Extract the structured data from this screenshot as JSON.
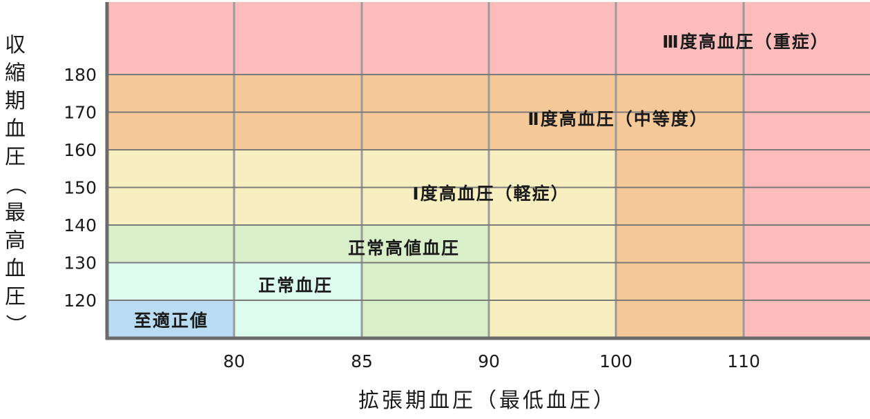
{
  "chart_data": {
    "type": "heatmap",
    "xlabel": "拡張期血圧（最低血圧）",
    "ylabel": "収縮期血圧（最高血圧）",
    "x_ticks": [
      80,
      85,
      90,
      100,
      110
    ],
    "y_ticks": [
      120,
      130,
      140,
      150,
      160,
      170,
      180
    ],
    "categories": [
      {
        "name": "至適正値",
        "max_systolic": 120,
        "max_diastolic": 80,
        "color": "#b9dcf2"
      },
      {
        "name": "正常血圧",
        "max_systolic": 130,
        "max_diastolic": 85,
        "color": "#dcfaee"
      },
      {
        "name": "正常高値血圧",
        "max_systolic": 140,
        "max_diastolic": 90,
        "color": "#d8efc9"
      },
      {
        "name": "Ⅰ度高血圧（軽症）",
        "max_systolic": 160,
        "max_diastolic": 100,
        "color": "#f7efc0"
      },
      {
        "name": "Ⅱ度高血圧（中等度）",
        "max_systolic": 180,
        "max_diastolic": 110,
        "color": "#f5c898"
      },
      {
        "name": "Ⅲ度高血圧（重症）",
        "max_systolic": null,
        "max_diastolic": null,
        "color": "#fcbcbc"
      }
    ]
  }
}
